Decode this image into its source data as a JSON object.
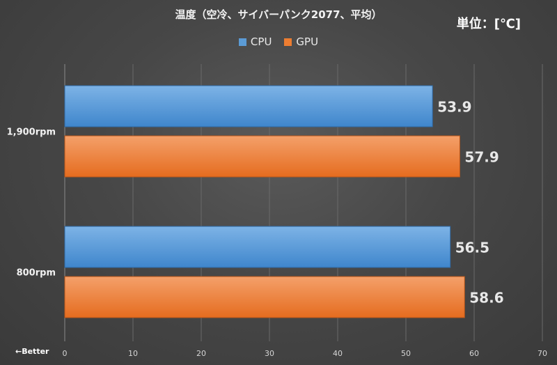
{
  "unit_label": "単位：[℃]",
  "better_label": "←Better",
  "colors": {
    "cpu": "#5b9bd5",
    "gpu": "#ed7d31"
  },
  "chart_data": {
    "type": "bar",
    "orientation": "horizontal",
    "title": "温度（空冷、サイバーパンク2077、平均）",
    "categories": [
      "1,900rpm",
      "800rpm"
    ],
    "series": [
      {
        "name": "CPU",
        "values": [
          53.9,
          56.5
        ]
      },
      {
        "name": "GPU",
        "values": [
          57.9,
          58.6
        ]
      }
    ],
    "xlim": [
      0,
      70
    ],
    "xticks": [
      0,
      10,
      20,
      30,
      40,
      50,
      60,
      70
    ],
    "grid": true,
    "legend": "top"
  }
}
